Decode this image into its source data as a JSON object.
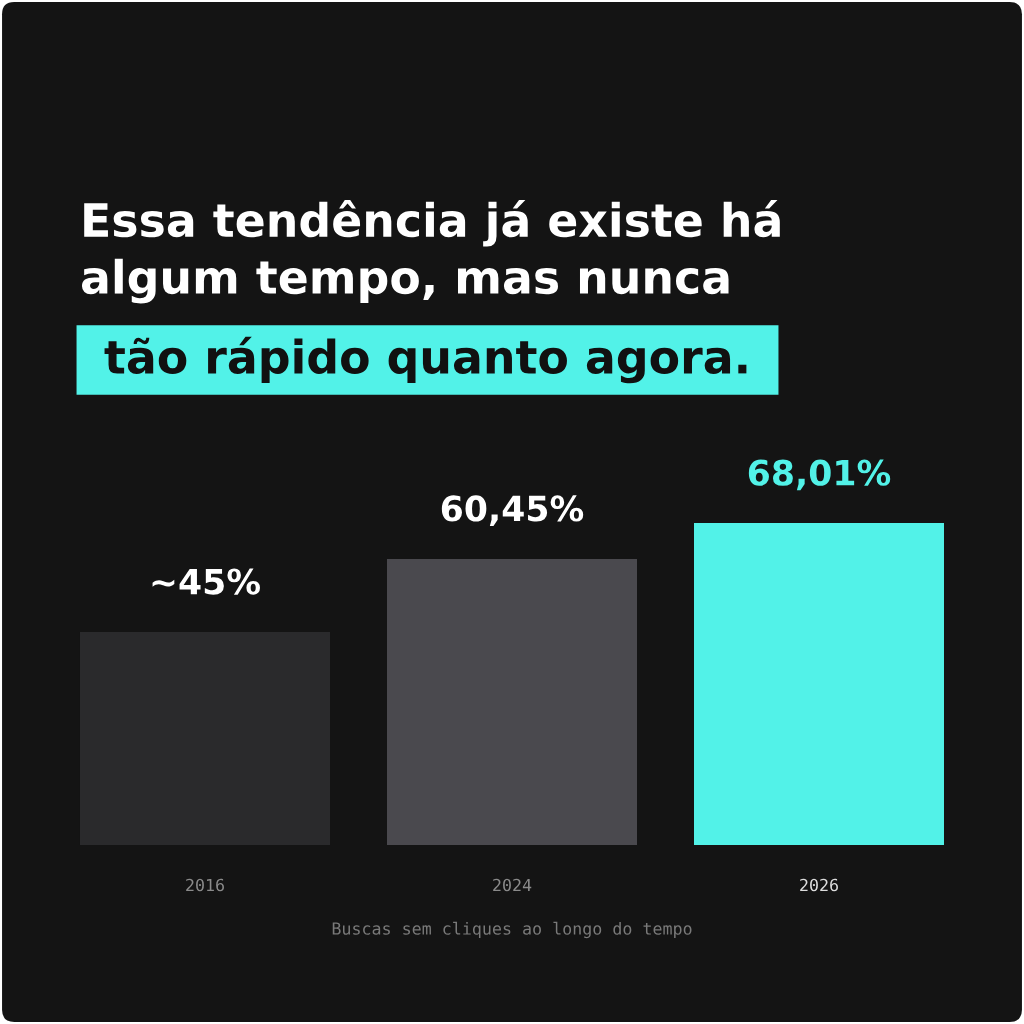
{
  "chart_data": {
    "type": "bar",
    "title": "Essa tendência já existe há\nalgum tempo, mas nunca",
    "subtitle": "tão rápido quanto agora.",
    "categories": [
      "2016",
      "2024",
      "2026"
    ],
    "values": [
      45,
      60.45,
      68.01
    ],
    "value_labels": [
      "~45%",
      "60,45%",
      "68,01%"
    ],
    "colors": [
      "#2a2a2c",
      "#4a494e",
      "#52f2e8"
    ],
    "annotations": [
      "Buscas sem cliques ao longo do tempo"
    ],
    "grid": false,
    "legend": false
  }
}
